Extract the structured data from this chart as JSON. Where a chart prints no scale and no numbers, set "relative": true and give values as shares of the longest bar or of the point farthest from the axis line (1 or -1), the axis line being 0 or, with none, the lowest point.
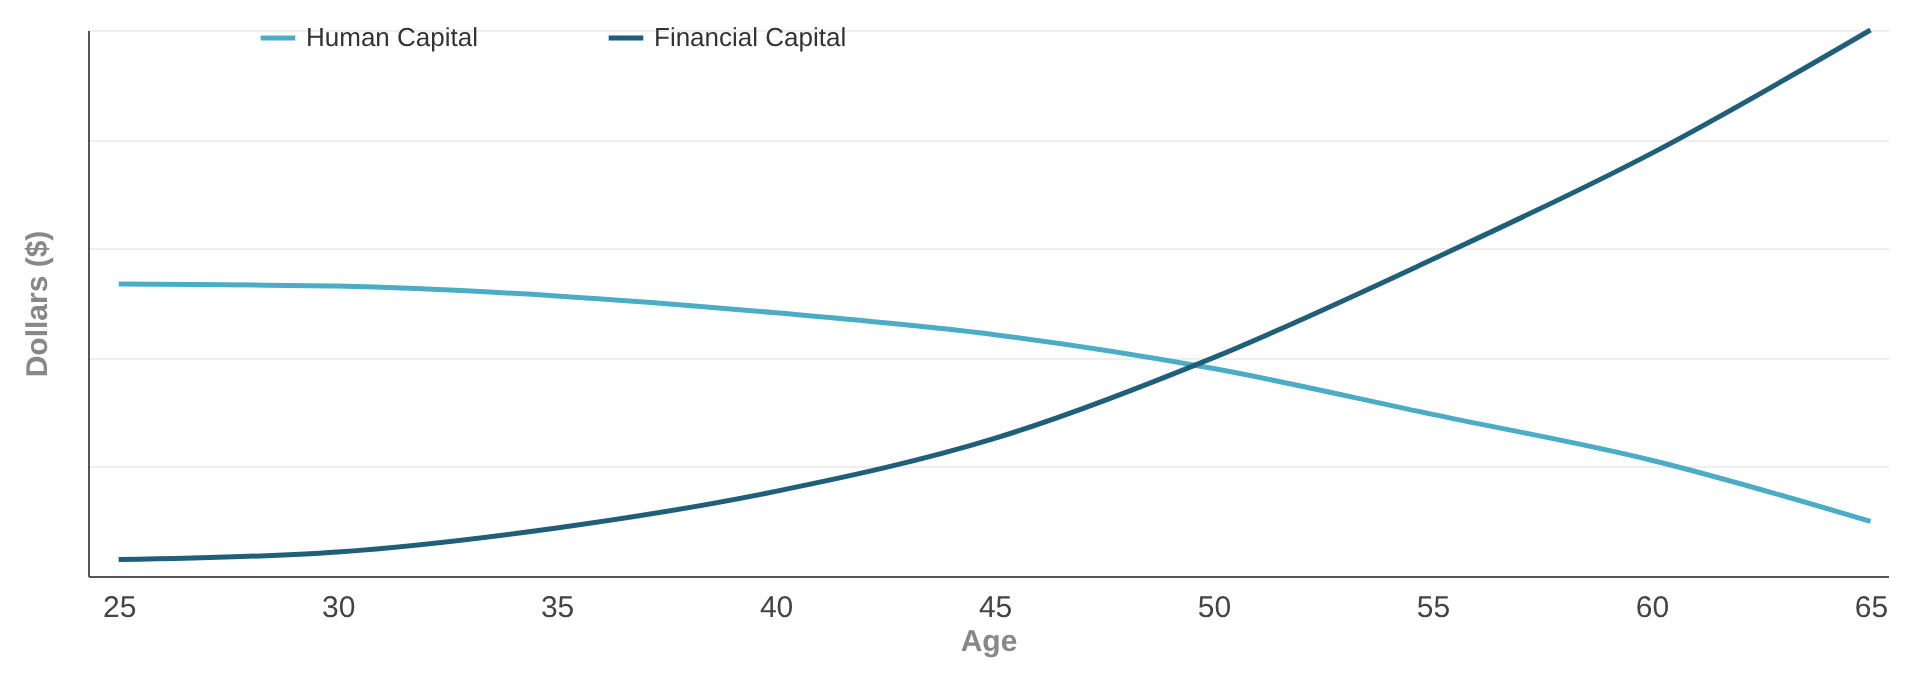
{
  "chart_data": {
    "type": "line",
    "xlabel": "Age",
    "ylabel": "Dollars ($)",
    "relative": true,
    "x": [
      25,
      30,
      35,
      40,
      45,
      50,
      55,
      60,
      65
    ],
    "xlim": [
      24.3,
      65.4
    ],
    "xticks": [
      25,
      30,
      35,
      40,
      45,
      50,
      55,
      60,
      65
    ],
    "grid": "y",
    "legend": "top left",
    "marker": "none",
    "line_style": "solid",
    "series": [
      {
        "name": "Human Capital",
        "color": "#4bacc6",
        "values": [
          0.535,
          0.531,
          0.513,
          0.482,
          0.442,
          0.38,
          0.296,
          0.212,
          0.1
        ]
      },
      {
        "name": "Financial  Capital",
        "color": "#1f5f7a",
        "values": [
          0.03,
          0.044,
          0.088,
          0.155,
          0.252,
          0.4,
          0.58,
          0.774,
          1
        ]
      }
    ]
  }
}
